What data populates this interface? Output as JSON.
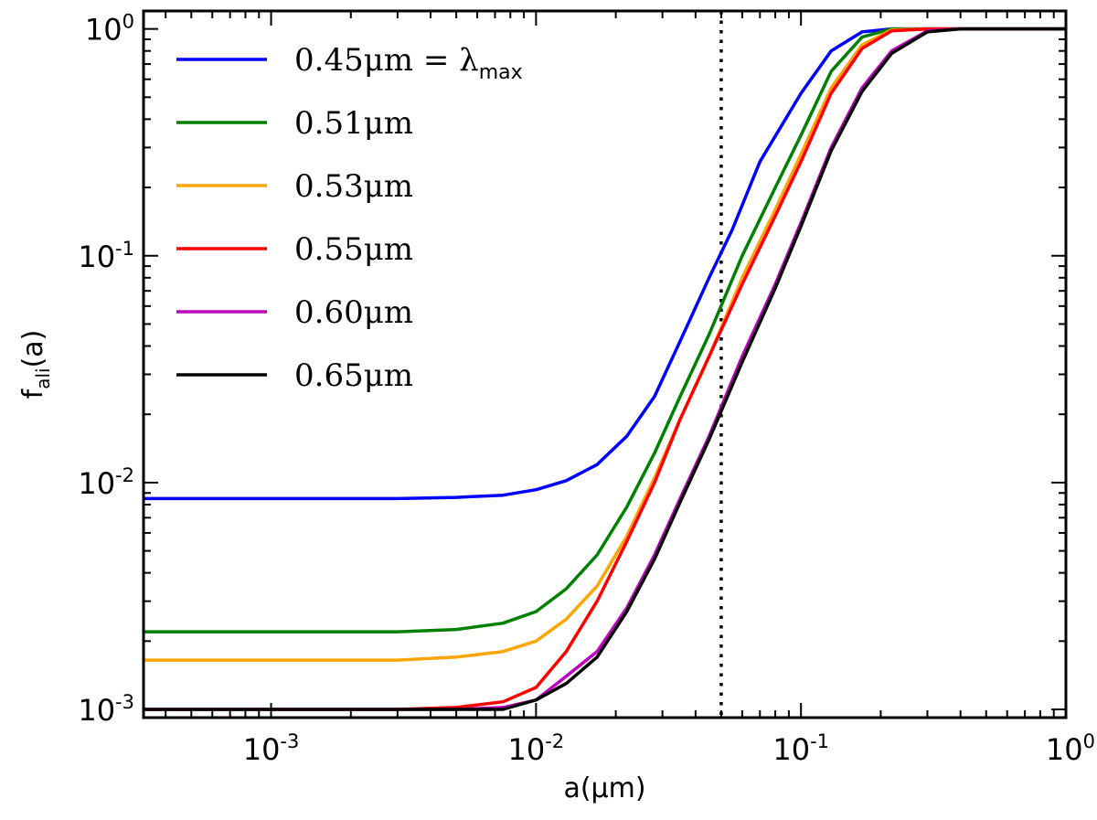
{
  "chart_data": {
    "type": "line",
    "xscale": "log",
    "yscale": "log",
    "xlabel": "a(μm)",
    "ylabel": "f_ali(a)",
    "xlim": [
      0.00033,
      1.0
    ],
    "ylim": [
      0.00092,
      1.2
    ],
    "xticks": [
      {
        "base": "10",
        "exp": "-3",
        "value": 0.001
      },
      {
        "base": "10",
        "exp": "-2",
        "value": 0.01
      },
      {
        "base": "10",
        "exp": "-1",
        "value": 0.1
      },
      {
        "base": "10",
        "exp": "0",
        "value": 1.0
      }
    ],
    "yticks": [
      {
        "base": "10",
        "exp": "-3",
        "value": 0.001
      },
      {
        "base": "10",
        "exp": "-2",
        "value": 0.01
      },
      {
        "base": "10",
        "exp": "-1",
        "value": 0.1
      },
      {
        "base": "10",
        "exp": "0",
        "value": 1.0
      }
    ],
    "vline": {
      "x": 0.05,
      "style": "dotted",
      "color": "#000000"
    },
    "legend_position": "top-left",
    "series": [
      {
        "name": "0.45μm = λmax",
        "label_main": "0.45μm = λ",
        "label_sub": "max",
        "color": "#0000ff",
        "points": [
          [
            0.00033,
            0.0085
          ],
          [
            0.001,
            0.0085
          ],
          [
            0.003,
            0.0085
          ],
          [
            0.005,
            0.0086
          ],
          [
            0.0075,
            0.0088
          ],
          [
            0.01,
            0.0093
          ],
          [
            0.013,
            0.0102
          ],
          [
            0.017,
            0.012
          ],
          [
            0.022,
            0.016
          ],
          [
            0.028,
            0.024
          ],
          [
            0.035,
            0.042
          ],
          [
            0.045,
            0.08
          ],
          [
            0.055,
            0.13
          ],
          [
            0.07,
            0.26
          ],
          [
            0.1,
            0.52
          ],
          [
            0.13,
            0.8
          ],
          [
            0.17,
            0.97
          ],
          [
            0.22,
            1.0
          ],
          [
            0.3,
            1.0
          ],
          [
            1.0,
            1.0
          ]
        ]
      },
      {
        "name": "0.51μm",
        "label_main": "0.51μm",
        "label_sub": "",
        "color": "#008000",
        "points": [
          [
            0.00033,
            0.0022
          ],
          [
            0.001,
            0.0022
          ],
          [
            0.003,
            0.0022
          ],
          [
            0.005,
            0.00225
          ],
          [
            0.0075,
            0.0024
          ],
          [
            0.01,
            0.0027
          ],
          [
            0.013,
            0.0034
          ],
          [
            0.017,
            0.0048
          ],
          [
            0.022,
            0.0078
          ],
          [
            0.028,
            0.0135
          ],
          [
            0.035,
            0.024
          ],
          [
            0.045,
            0.045
          ],
          [
            0.06,
            0.1
          ],
          [
            0.08,
            0.2
          ],
          [
            0.1,
            0.34
          ],
          [
            0.13,
            0.65
          ],
          [
            0.17,
            0.92
          ],
          [
            0.22,
            1.0
          ],
          [
            0.3,
            1.0
          ],
          [
            1.0,
            1.0
          ]
        ]
      },
      {
        "name": "0.53μm",
        "label_main": "0.53μm",
        "label_sub": "",
        "color": "#ffa500",
        "points": [
          [
            0.00033,
            0.00165
          ],
          [
            0.001,
            0.00165
          ],
          [
            0.003,
            0.00165
          ],
          [
            0.005,
            0.0017
          ],
          [
            0.0075,
            0.0018
          ],
          [
            0.01,
            0.002
          ],
          [
            0.013,
            0.0025
          ],
          [
            0.017,
            0.0035
          ],
          [
            0.022,
            0.0058
          ],
          [
            0.028,
            0.0105
          ],
          [
            0.035,
            0.019
          ],
          [
            0.045,
            0.036
          ],
          [
            0.06,
            0.08
          ],
          [
            0.08,
            0.16
          ],
          [
            0.1,
            0.28
          ],
          [
            0.13,
            0.55
          ],
          [
            0.17,
            0.85
          ],
          [
            0.22,
            0.99
          ],
          [
            0.3,
            1.0
          ],
          [
            1.0,
            1.0
          ]
        ]
      },
      {
        "name": "0.55μm",
        "label_main": "0.55μm",
        "label_sub": "",
        "color": "#ff0000",
        "points": [
          [
            0.00033,
            0.001
          ],
          [
            0.001,
            0.001
          ],
          [
            0.003,
            0.001
          ],
          [
            0.005,
            0.00102
          ],
          [
            0.0075,
            0.00108
          ],
          [
            0.01,
            0.00125
          ],
          [
            0.013,
            0.0018
          ],
          [
            0.017,
            0.003
          ],
          [
            0.022,
            0.0055
          ],
          [
            0.028,
            0.01
          ],
          [
            0.035,
            0.019
          ],
          [
            0.045,
            0.036
          ],
          [
            0.06,
            0.075
          ],
          [
            0.08,
            0.15
          ],
          [
            0.1,
            0.26
          ],
          [
            0.13,
            0.52
          ],
          [
            0.17,
            0.82
          ],
          [
            0.22,
            0.98
          ],
          [
            0.3,
            1.0
          ],
          [
            1.0,
            1.0
          ]
        ]
      },
      {
        "name": "0.60μm",
        "label_main": "0.60μm",
        "label_sub": "",
        "color": "#bf00bf",
        "points": [
          [
            0.00033,
            0.001
          ],
          [
            0.001,
            0.001
          ],
          [
            0.003,
            0.001
          ],
          [
            0.005,
            0.001
          ],
          [
            0.0075,
            0.00102
          ],
          [
            0.01,
            0.0011
          ],
          [
            0.013,
            0.0014
          ],
          [
            0.017,
            0.0018
          ],
          [
            0.022,
            0.0028
          ],
          [
            0.028,
            0.0048
          ],
          [
            0.035,
            0.0085
          ],
          [
            0.045,
            0.016
          ],
          [
            0.06,
            0.036
          ],
          [
            0.08,
            0.075
          ],
          [
            0.1,
            0.14
          ],
          [
            0.13,
            0.3
          ],
          [
            0.17,
            0.55
          ],
          [
            0.22,
            0.8
          ],
          [
            0.3,
            0.98
          ],
          [
            0.4,
            1.0
          ],
          [
            1.0,
            1.0
          ]
        ]
      },
      {
        "name": "0.65μm",
        "label_main": "0.65μm",
        "label_sub": "",
        "color": "#000000",
        "points": [
          [
            0.00033,
            0.001
          ],
          [
            0.001,
            0.001
          ],
          [
            0.003,
            0.001
          ],
          [
            0.005,
            0.001
          ],
          [
            0.0075,
            0.001
          ],
          [
            0.01,
            0.0011
          ],
          [
            0.013,
            0.0013
          ],
          [
            0.017,
            0.0017
          ],
          [
            0.022,
            0.0027
          ],
          [
            0.028,
            0.0046
          ],
          [
            0.035,
            0.0082
          ],
          [
            0.045,
            0.0155
          ],
          [
            0.06,
            0.034
          ],
          [
            0.08,
            0.072
          ],
          [
            0.1,
            0.135
          ],
          [
            0.13,
            0.29
          ],
          [
            0.17,
            0.53
          ],
          [
            0.22,
            0.78
          ],
          [
            0.3,
            0.97
          ],
          [
            0.4,
            1.0
          ],
          [
            1.0,
            1.0
          ]
        ]
      }
    ]
  }
}
